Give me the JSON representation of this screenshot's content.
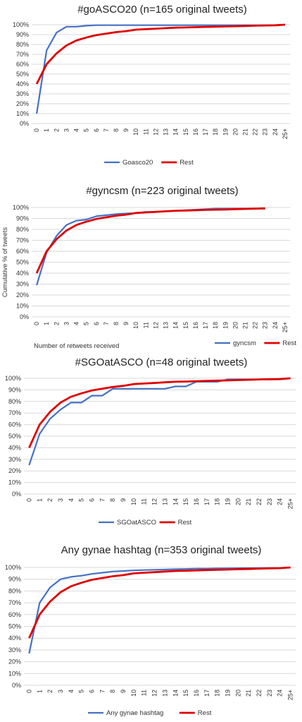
{
  "colors": {
    "blue": "#4472c4",
    "red": "#e00000",
    "grid": "#d9d9d9"
  },
  "chart_data": [
    {
      "type": "line",
      "title": "#goASCO20 (n=165 original tweets)",
      "xlabel": "",
      "ylabel": "",
      "categories": [
        "0",
        "1",
        "2",
        "3",
        "4",
        "5",
        "6",
        "7",
        "8",
        "9",
        "10",
        "11",
        "12",
        "13",
        "14",
        "15",
        "16",
        "17",
        "18",
        "19",
        "20",
        "21",
        "22",
        "23",
        "24",
        "25+"
      ],
      "yticks": [
        "0%",
        "10%",
        "20%",
        "30%",
        "40%",
        "50%",
        "60%",
        "70%",
        "80%",
        "90%",
        "100%"
      ],
      "ylim": [
        0,
        100
      ],
      "legend_position": "bottom",
      "grid": true,
      "series": [
        {
          "name": "Goasco20",
          "color": "#4472c4",
          "values": [
            10,
            74,
            92,
            98,
            98,
            99,
            99.5,
            99.5,
            99.5,
            99.5,
            99.5,
            99.5,
            99.5,
            99.5,
            99.5,
            99.5,
            99.5,
            99.5,
            99.5,
            99.5,
            99.5,
            99.5,
            99.5,
            99.5,
            99.5,
            100
          ]
        },
        {
          "name": "Rest",
          "color": "#e00000",
          "values": [
            40,
            60,
            71,
            79,
            84,
            87,
            89.5,
            91,
            92.5,
            93.5,
            95,
            95.5,
            96,
            96.5,
            97,
            97.2,
            97.5,
            97.8,
            98,
            98.2,
            98.5,
            98.7,
            99,
            99.2,
            99.4,
            100
          ]
        }
      ]
    },
    {
      "type": "line",
      "title": "#gyncsm (n=223 original tweets)",
      "xlabel": "Number of retweets received",
      "ylabel": "Cumulative % of tweets",
      "categories": [
        "0",
        "1",
        "2",
        "3",
        "4",
        "5",
        "6",
        "7",
        "8",
        "9",
        "10",
        "11",
        "12",
        "13",
        "14",
        "15",
        "16",
        "17",
        "18",
        "19",
        "20",
        "21",
        "22",
        "23",
        "24",
        "25+"
      ],
      "yticks": [
        "0%",
        "10%",
        "20%",
        "30%",
        "40%",
        "50%",
        "60%",
        "70%",
        "80%",
        "90%",
        "100%"
      ],
      "ylim": [
        0,
        100
      ],
      "legend_position": "bottom-right",
      "grid": true,
      "series": [
        {
          "name": "gyncsm",
          "color": "#4472c4",
          "values": [
            29,
            59,
            74,
            84,
            88,
            89,
            92,
            93,
            94,
            94.5,
            95,
            96,
            96,
            96.5,
            97,
            97.5,
            98,
            98.5,
            99,
            99,
            99,
            99,
            99,
            99,
            null,
            null
          ]
        },
        {
          "name": "Rest",
          "color": "#e00000",
          "values": [
            40,
            60,
            71,
            79,
            84,
            87,
            89.5,
            91,
            92.5,
            93.5,
            95,
            95.5,
            96,
            96.5,
            97,
            97.2,
            97.5,
            97.8,
            98,
            98.2,
            98.5,
            98.7,
            99,
            99.2,
            null,
            null
          ]
        }
      ]
    },
    {
      "type": "line",
      "title": "#SGOatASCO (n=48 original tweets)",
      "xlabel": "",
      "ylabel": "",
      "categories": [
        "0",
        "1",
        "2",
        "3",
        "4",
        "5",
        "6",
        "7",
        "8",
        "9",
        "10",
        "11",
        "12",
        "13",
        "14",
        "15",
        "16",
        "17",
        "18",
        "19",
        "20",
        "21",
        "22",
        "23",
        "24",
        "25+"
      ],
      "yticks": [
        "0%",
        "10%",
        "20%",
        "30%",
        "40%",
        "50%",
        "60%",
        "70%",
        "80%",
        "90%",
        "100%"
      ],
      "ylim": [
        0,
        100
      ],
      "legend_position": "bottom",
      "grid": true,
      "series": [
        {
          "name": "SGOatASCO",
          "color": "#4472c4",
          "values": [
            25,
            52,
            65,
            73,
            79,
            79,
            85,
            85,
            91,
            91,
            91,
            91,
            91,
            91,
            93,
            93,
            97,
            97,
            97,
            99,
            99,
            99,
            99,
            99,
            99,
            100
          ]
        },
        {
          "name": "Rest",
          "color": "#e00000",
          "values": [
            40,
            60,
            71,
            79,
            84,
            87,
            89.5,
            91,
            92.5,
            93.5,
            95,
            95.5,
            96,
            96.5,
            97,
            97.2,
            97.5,
            97.8,
            98,
            98.2,
            98.5,
            98.7,
            99,
            99.2,
            99.4,
            100
          ]
        }
      ]
    },
    {
      "type": "line",
      "title": "Any gynae hashtag (n=353 original tweets)",
      "xlabel": "",
      "ylabel": "",
      "categories": [
        "0",
        "1",
        "2",
        "3",
        "4",
        "5",
        "6",
        "7",
        "8",
        "9",
        "10",
        "11",
        "12",
        "13",
        "14",
        "15",
        "16",
        "17",
        "18",
        "19",
        "20",
        "21",
        "22",
        "23",
        "24",
        "25+"
      ],
      "yticks": [
        "0%",
        "10%",
        "20%",
        "30%",
        "40%",
        "50%",
        "60%",
        "70%",
        "80%",
        "90%",
        "100%"
      ],
      "ylim": [
        0,
        100
      ],
      "legend_position": "bottom",
      "grid": true,
      "series": [
        {
          "name": "Any gynae hashtag",
          "color": "#4472c4",
          "values": [
            27,
            70,
            83,
            90,
            92,
            93,
            94.5,
            95.5,
            96.5,
            97,
            97.5,
            97.8,
            98,
            98.2,
            98.5,
            98.7,
            99,
            99,
            99.2,
            99.3,
            99.4,
            99.5,
            99.5,
            99.6,
            99.6,
            100
          ]
        },
        {
          "name": "Rest",
          "color": "#e00000",
          "values": [
            40,
            60,
            71,
            79,
            84,
            87,
            89.5,
            91,
            92.5,
            93.5,
            95,
            95.5,
            96,
            96.5,
            97,
            97.2,
            97.5,
            97.8,
            98,
            98.2,
            98.5,
            98.7,
            99,
            99.2,
            99.4,
            100
          ]
        }
      ]
    }
  ]
}
